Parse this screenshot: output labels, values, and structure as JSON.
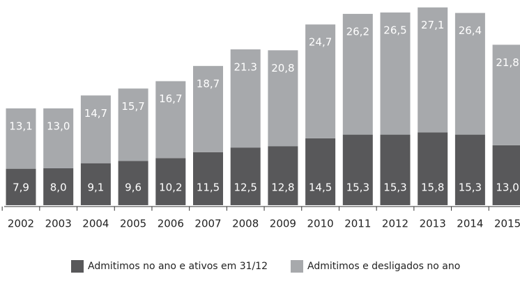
{
  "chart_data": {
    "type": "stacked_bar",
    "categories": [
      "2002",
      "2003",
      "2004",
      "2005",
      "2006",
      "2007",
      "2008",
      "2009",
      "2010",
      "2011",
      "2012",
      "2013",
      "2014",
      "2015"
    ],
    "series": [
      {
        "name": "Admitimos no ano e ativos em 31/12",
        "color": "#58585a",
        "values": [
          7.9,
          8.0,
          9.1,
          9.6,
          10.2,
          11.5,
          12.5,
          12.8,
          14.5,
          15.3,
          15.3,
          15.8,
          15.3,
          13.0
        ],
        "value_labels": [
          "7,9",
          "8,0",
          "9,1",
          "9,6",
          "10,2",
          "11,5",
          "12,5",
          "12,8",
          "14,5",
          "15,3",
          "15,3",
          "15,8",
          "15,3",
          "13,0"
        ]
      },
      {
        "name": "Admitimos e desligados no ano",
        "color": "#a7a9ac",
        "values": [
          13.1,
          13.0,
          14.7,
          15.7,
          16.7,
          18.7,
          21.3,
          20.8,
          24.7,
          26.2,
          26.5,
          27.1,
          26.4,
          21.8
        ],
        "value_labels": [
          "13,1",
          "13,0",
          "14,7",
          "15,7",
          "16,7",
          "18,7",
          "21.3",
          "20,8",
          "24,7",
          "26,2",
          "26,5",
          "27,1",
          "26,4",
          "21,8"
        ]
      }
    ],
    "ylim": [
      0,
      43
    ]
  }
}
